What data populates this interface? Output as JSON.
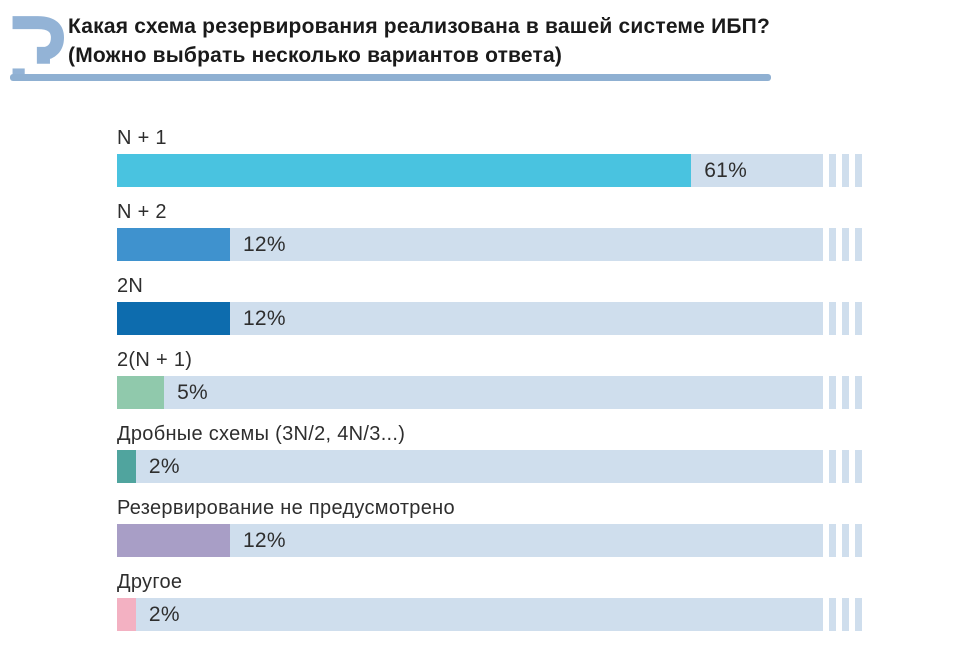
{
  "header": {
    "title_line1": "Какая схема резервирования реализована в вашей системе ИБП?",
    "title_line2": "(Можно выбрать несколько вариантов ответа)"
  },
  "chart_data": {
    "type": "bar",
    "orientation": "horizontal",
    "title": "Какая схема резервирования реализована в вашей системе ИБП?",
    "subtitle": "(Можно выбрать несколько вариантов ответа)",
    "unit": "%",
    "grid": false,
    "legend": false,
    "axis_max": 75,
    "categories": [
      "N + 1",
      "N + 2",
      "2N",
      "2(N + 1)",
      "Дробные схемы (3N/2, 4N/3...)",
      "Резервирование не предусмотрено",
      "Другое"
    ],
    "values": [
      61,
      12,
      12,
      5,
      2,
      12,
      2
    ],
    "value_labels": [
      "61%",
      "12%",
      "12%",
      "5%",
      "2%",
      "12%",
      "2%"
    ],
    "bar_colors": [
      "#49C3E0",
      "#3F92CE",
      "#0D6CAE",
      "#90C9AC",
      "#50A49E",
      "#A89EC6",
      "#F3B1C2"
    ],
    "track_color": "#CFDEED",
    "stripe_count": 3
  },
  "colors": {
    "accent": "#8FB0D2",
    "icon": "#93B3D6",
    "title_text": "#1a1a1a",
    "label_text": "#2e2e2e",
    "background": "#FFFFFF"
  }
}
